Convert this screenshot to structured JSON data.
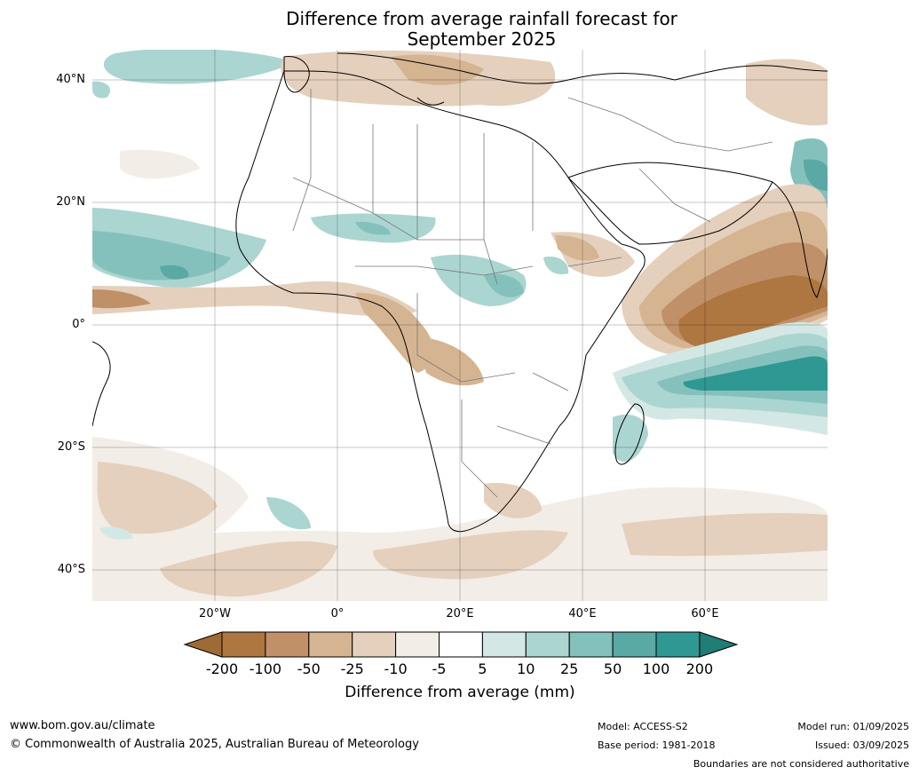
{
  "title_line1": "Difference from average rainfall forecast for",
  "title_line2": "September 2025",
  "map": {
    "lat_labels": [
      "40°N",
      "20°N",
      "0°",
      "20°S",
      "40°S"
    ],
    "lon_labels": [
      "20°W",
      "0°",
      "20°E",
      "40°E",
      "60°E"
    ],
    "region": "Africa, Middle East and surrounding oceans"
  },
  "colorbar": {
    "title": "Difference from average (mm)",
    "ticks": [
      "-200",
      "-100",
      "-50",
      "-25",
      "-10",
      "-5",
      "5",
      "10",
      "25",
      "50",
      "100",
      "200"
    ],
    "colors": [
      "#9e6a35",
      "#ae7640",
      "#c09068",
      "#d5b491",
      "#e4d0bc",
      "#f2ede6",
      "#ffffff",
      "#d3e8e5",
      "#abd5d1",
      "#84c1bd",
      "#5aa9a5",
      "#2f9892",
      "#207c77"
    ]
  },
  "footer": {
    "website": "www.bom.gov.au/climate",
    "copyright": "© Commonwealth of Australia 2025, Australian Bureau of Meteorology",
    "model": "Model: ACCESS-S2",
    "base_period": "Base period: 1981-2018",
    "model_run": "Model run: 01/09/2025",
    "issued": "Issued: 03/09/2025",
    "disclaimer": "Boundaries are not considered authoritative"
  }
}
